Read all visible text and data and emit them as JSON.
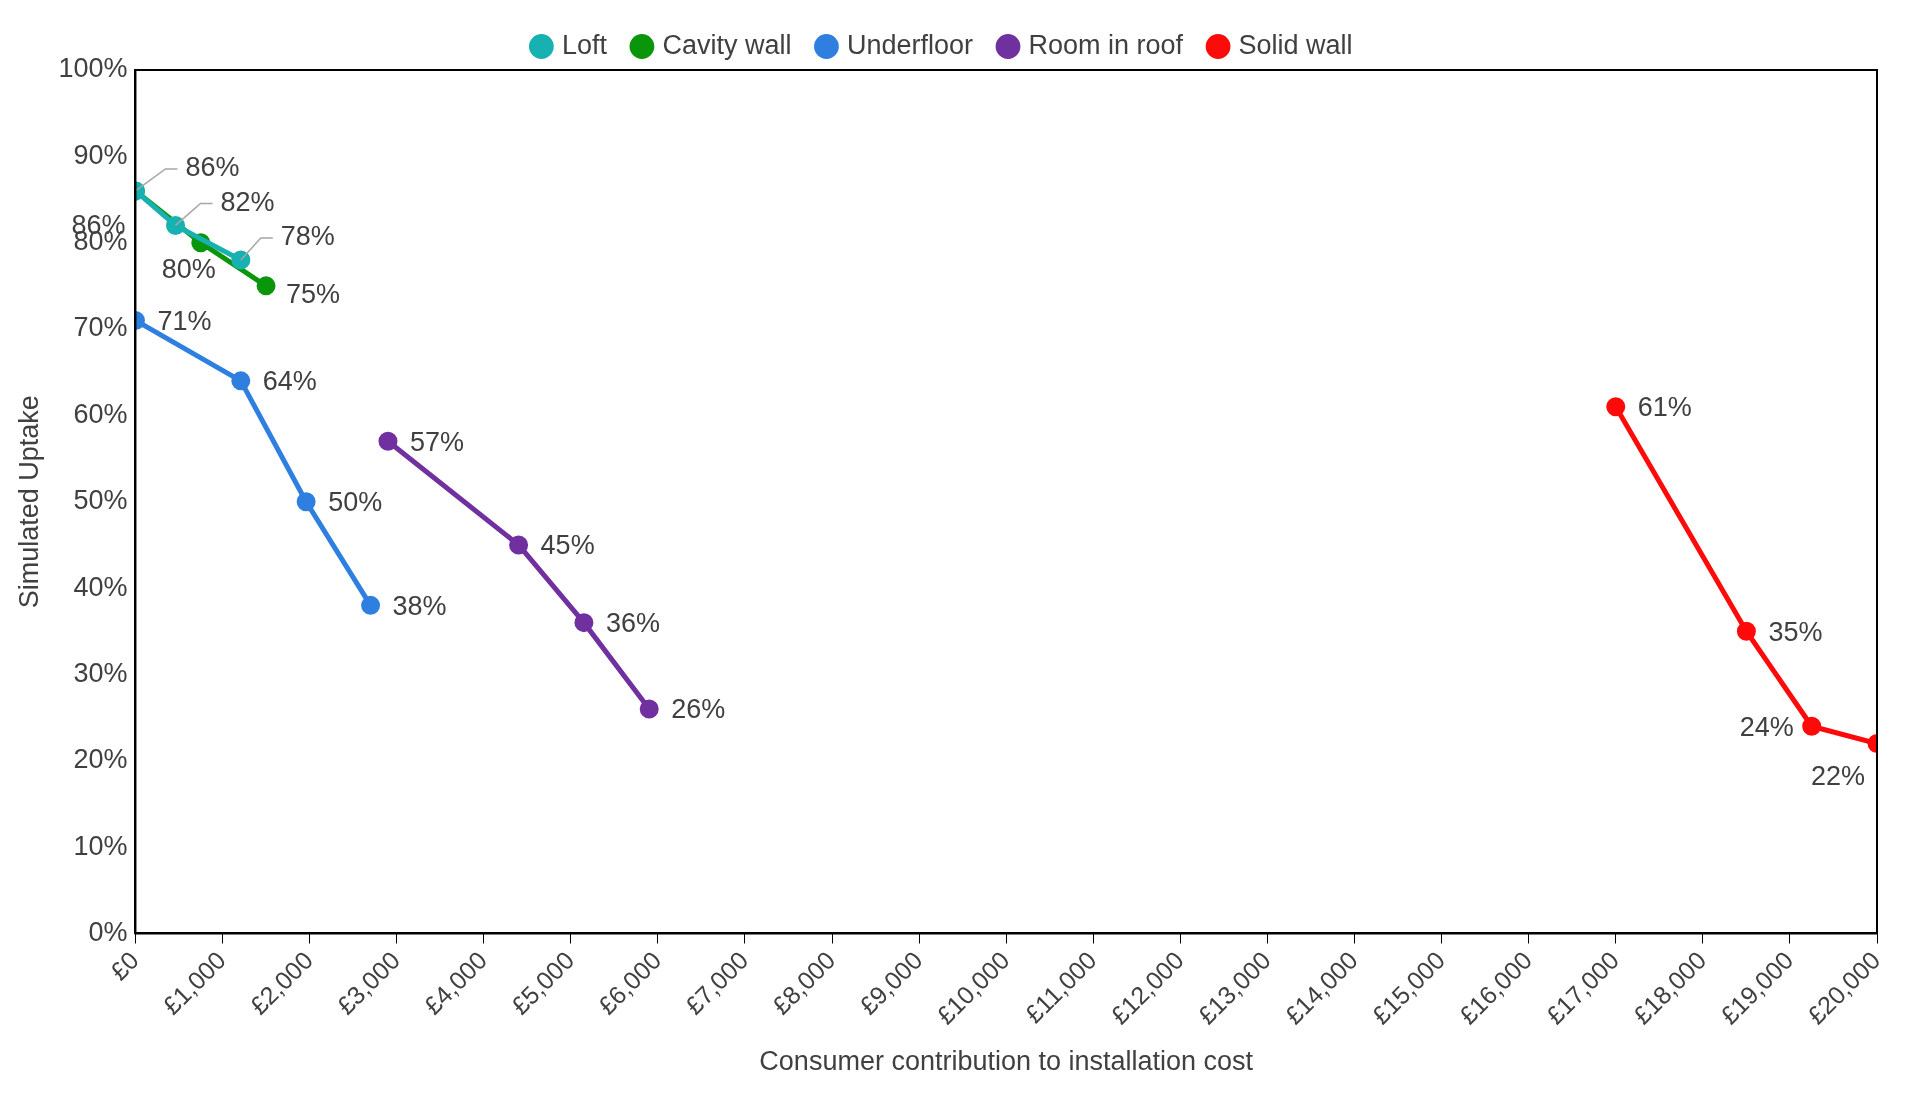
{
  "chart_data": {
    "type": "line",
    "xlabel": "Consumer contribution to installation cost",
    "ylabel": "Simulated Uptake",
    "xlim": [
      0,
      20000
    ],
    "xticks": [
      {
        "value": 0,
        "label": "£0"
      },
      {
        "value": 1000,
        "label": "£1,000"
      },
      {
        "value": 2000,
        "label": "£2,000"
      },
      {
        "value": 3000,
        "label": "£3,000"
      },
      {
        "value": 4000,
        "label": "£4,000"
      },
      {
        "value": 5000,
        "label": "£5,000"
      },
      {
        "value": 6000,
        "label": "£6,000"
      },
      {
        "value": 7000,
        "label": "£7,000"
      },
      {
        "value": 8000,
        "label": "£8,000"
      },
      {
        "value": 9000,
        "label": "£9,000"
      },
      {
        "value": 10000,
        "label": "£10,000"
      },
      {
        "value": 11000,
        "label": "£11,000"
      },
      {
        "value": 12000,
        "label": "£12,000"
      },
      {
        "value": 13000,
        "label": "£13,000"
      },
      {
        "value": 14000,
        "label": "£14,000"
      },
      {
        "value": 15000,
        "label": "£15,000"
      },
      {
        "value": 16000,
        "label": "£16,000"
      },
      {
        "value": 17000,
        "label": "£17,000"
      },
      {
        "value": 18000,
        "label": "£18,000"
      },
      {
        "value": 19000,
        "label": "£19,000"
      },
      {
        "value": 20000,
        "label": "£20,000"
      }
    ],
    "ylim": [
      0,
      100
    ],
    "yticks": [
      {
        "value": 0,
        "label": "0%"
      },
      {
        "value": 10,
        "label": "10%"
      },
      {
        "value": 20,
        "label": "20%"
      },
      {
        "value": 30,
        "label": "30%"
      },
      {
        "value": 40,
        "label": "40%"
      },
      {
        "value": 50,
        "label": "50%"
      },
      {
        "value": 60,
        "label": "60%"
      },
      {
        "value": 70,
        "label": "70%"
      },
      {
        "value": 80,
        "label": "80%"
      },
      {
        "value": 90,
        "label": "90%"
      },
      {
        "value": 100,
        "label": "100%"
      }
    ],
    "legend": "top",
    "grid": false,
    "marker": "circle",
    "line_style": "solid",
    "series": [
      {
        "name": "Loft",
        "color": "#17b1b1",
        "x": [
          0,
          460,
          1210
        ],
        "values": [
          86,
          82,
          78
        ],
        "value_labels": [
          "86%",
          "82%",
          "78%"
        ]
      },
      {
        "name": "Cavity wall",
        "color": "#0a960a",
        "x": [
          0,
          750,
          1500
        ],
        "values": [
          86,
          80,
          75
        ],
        "value_labels": [
          "86%",
          "80%",
          "75%"
        ]
      },
      {
        "name": "Underfloor",
        "color": "#2e7fe0",
        "x": [
          0,
          1210,
          1960,
          2700
        ],
        "values": [
          71,
          64,
          50,
          38
        ],
        "value_labels": [
          "71%",
          "64%",
          "50%",
          "38%"
        ]
      },
      {
        "name": "Room in roof",
        "color": "#7030a0",
        "x": [
          2900,
          4400,
          5150,
          5900
        ],
        "values": [
          57,
          45,
          36,
          26
        ],
        "value_labels": [
          "57%",
          "45%",
          "36%",
          "26%"
        ]
      },
      {
        "name": "Solid wall",
        "color": "#ff0a0a",
        "x": [
          17000,
          18500,
          19250,
          20000
        ],
        "values": [
          61,
          35,
          24,
          22
        ],
        "value_labels": [
          "61%",
          "35%",
          "24%",
          "22%"
        ]
      }
    ]
  }
}
